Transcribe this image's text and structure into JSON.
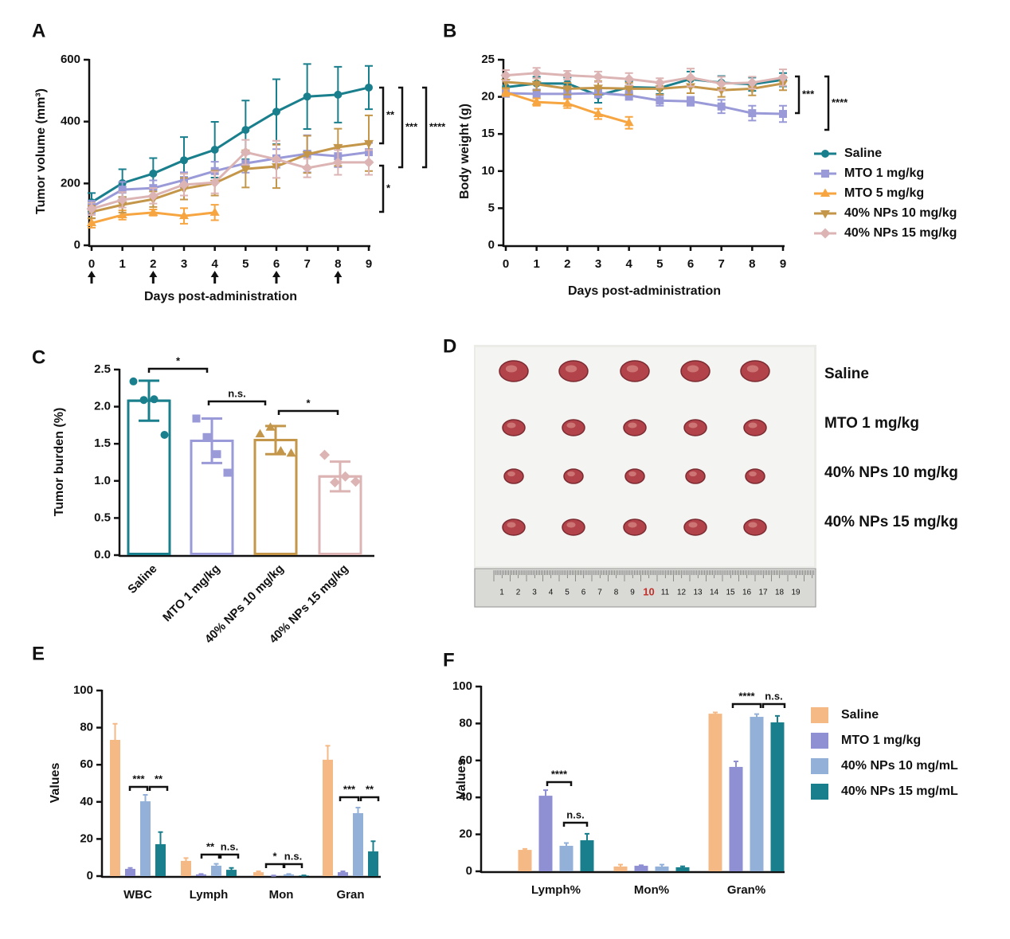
{
  "chart_data": [
    {
      "type": "line",
      "label": "A",
      "ylabel": "Tumor volume (mm³)",
      "xlabel": "Days post-administration",
      "x": [
        0,
        1,
        2,
        3,
        4,
        5,
        6,
        7,
        8,
        9
      ],
      "xlim": [
        0,
        9
      ],
      "xticks": [
        0,
        1,
        2,
        3,
        4,
        5,
        6,
        7,
        8,
        9
      ],
      "ylim": [
        0,
        600
      ],
      "yticks": [
        0,
        200,
        400,
        600
      ],
      "dosing_days": [
        0,
        2,
        4,
        6,
        8
      ],
      "series": [
        {
          "color": "#1a7f8c",
          "marker": "circle",
          "values": [
            139,
            201,
            232,
            275,
            309,
            373,
            432,
            481,
            487,
            510
          ],
          "errors": [
            30,
            45,
            50,
            75,
            90,
            95,
            105,
            105,
            90,
            70
          ]
        },
        {
          "color": "#9a9ad8",
          "marker": "square",
          "values": [
            124,
            180,
            185,
            211,
            240,
            265,
            281,
            296,
            288,
            301
          ],
          "errors": [
            20,
            25,
            25,
            25,
            30,
            30,
            30,
            60,
            35,
            30
          ]
        },
        {
          "color": "#f7a540",
          "marker": "triangle",
          "values": [
            72,
            98,
            106,
            95,
            106,
            null,
            null,
            null,
            null,
            null
          ],
          "errors": [
            15,
            15,
            10,
            25,
            25,
            null,
            null,
            null,
            null,
            null
          ]
        },
        {
          "color": "#c4964a",
          "marker": "triangle-down",
          "values": [
            108,
            131,
            149,
            183,
            201,
            247,
            255,
            294,
            317,
            330
          ],
          "errors": [
            20,
            25,
            25,
            35,
            40,
            60,
            70,
            60,
            60,
            90
          ]
        },
        {
          "color": "#dcb4b4",
          "marker": "diamond",
          "values": [
            118,
            147,
            160,
            196,
            203,
            301,
            278,
            250,
            268,
            268
          ],
          "errors": [
            20,
            25,
            25,
            35,
            35,
            40,
            60,
            30,
            40,
            40
          ]
        }
      ],
      "annotations": [
        "**",
        "***",
        "****",
        "*"
      ]
    },
    {
      "type": "line",
      "label": "B",
      "ylabel": "Body weight (g)",
      "xlabel": "Days post-administration",
      "x": [
        0,
        1,
        2,
        3,
        4,
        5,
        6,
        7,
        8,
        9
      ],
      "xlim": [
        0,
        9
      ],
      "xticks": [
        0,
        1,
        2,
        3,
        4,
        5,
        6,
        7,
        8,
        9
      ],
      "ylim": [
        0,
        25
      ],
      "yticks": [
        0,
        5,
        10,
        15,
        20,
        25
      ],
      "legend": "right",
      "series": [
        {
          "name": "Saline",
          "color": "#1a7f8c",
          "marker": "circle",
          "values": [
            21.3,
            21.8,
            21.8,
            20.2,
            21.3,
            21.2,
            22.4,
            21.9,
            21.7,
            22.3
          ],
          "errors": [
            1.0,
            0.9,
            0.8,
            1.0,
            0.8,
            0.8,
            1.0,
            0.9,
            0.9,
            0.9
          ]
        },
        {
          "name": "MTO 1 mg/kg",
          "color": "#9a9ad8",
          "marker": "square",
          "values": [
            20.5,
            20.4,
            20.4,
            20.5,
            20.2,
            19.5,
            19.4,
            18.7,
            17.8,
            17.7
          ],
          "errors": [
            0.5,
            0.6,
            0.5,
            0.6,
            0.6,
            0.7,
            0.6,
            0.9,
            1.0,
            1.1
          ]
        },
        {
          "name": "MTO 5 mg/kg",
          "color": "#f7a540",
          "marker": "triangle",
          "values": [
            20.6,
            19.3,
            19.1,
            17.7,
            16.5,
            null,
            null,
            null,
            null,
            null
          ],
          "errors": [
            0.5,
            0.5,
            0.6,
            0.7,
            0.8,
            null,
            null,
            null,
            null,
            null
          ]
        },
        {
          "name": "40% NPs 10 mg/kg",
          "color": "#c4964a",
          "marker": "triangle-down",
          "values": [
            22.0,
            21.7,
            21.1,
            21.2,
            21.1,
            21.1,
            21.4,
            20.9,
            21.1,
            21.8
          ],
          "errors": [
            0.8,
            0.8,
            0.8,
            0.9,
            0.8,
            0.8,
            0.9,
            0.9,
            0.9,
            0.9
          ]
        },
        {
          "name": "40% NPs 15 mg/kg",
          "color": "#dcb4b4",
          "marker": "diamond",
          "values": [
            22.9,
            23.2,
            22.9,
            22.7,
            22.4,
            21.9,
            22.6,
            21.8,
            21.9,
            22.6
          ],
          "errors": [
            0.7,
            0.7,
            0.6,
            0.7,
            0.8,
            0.6,
            1.2,
            0.9,
            0.8,
            1.1
          ]
        }
      ],
      "annotations": [
        "***",
        "****"
      ]
    },
    {
      "type": "bar",
      "label": "C",
      "ylabel": "Tumor burden (%)",
      "categories": [
        "Saline",
        "MTO 1 mg/kg",
        "40% NPs 10 mg/kg",
        "40% NPs 15 mg/kg"
      ],
      "values": [
        2.08,
        1.54,
        1.55,
        1.06
      ],
      "errors": [
        0.27,
        0.3,
        0.19,
        0.2
      ],
      "points": [
        [
          2.34,
          2.09,
          2.1,
          1.62
        ],
        [
          1.84,
          1.59,
          1.36,
          1.11
        ],
        [
          1.63,
          1.72,
          1.4,
          1.37
        ],
        [
          1.35,
          0.98,
          1.06,
          0.99
        ]
      ],
      "colors": [
        "#1a7f8c",
        "#9a9ad8",
        "#c4964a",
        "#dcb4b4"
      ],
      "markers": [
        "circle",
        "square",
        "triangle",
        "diamond"
      ],
      "ylim": [
        0,
        2.5
      ],
      "yticks": [
        {
          "value": 0,
          "label": "0.0"
        },
        {
          "value": 0.5,
          "label": "0.5"
        },
        {
          "value": 1,
          "label": "1.0"
        },
        {
          "value": 1.5,
          "label": "1.5"
        },
        {
          "value": 2,
          "label": "2.0"
        },
        {
          "value": 2.5,
          "label": "2.5"
        }
      ],
      "annotations": [
        "*",
        "n.s.",
        "*"
      ]
    },
    {
      "type": "bar",
      "label": "E",
      "ylabel": "Values",
      "categories": [
        "WBC",
        "Lymph",
        "Mon",
        "Gran"
      ],
      "ylim": [
        0,
        100
      ],
      "yticks": [
        0,
        20,
        40,
        60,
        80,
        100
      ],
      "series": [
        {
          "color": "#f5b985",
          "values": [
            73.4,
            8.2,
            2.1,
            62.7
          ],
          "errors": [
            8.7,
            1.5,
            0.5,
            7.5
          ]
        },
        {
          "color": "#8f8fd4",
          "values": [
            3.9,
            0.9,
            0.2,
            2.1
          ],
          "errors": [
            0.5,
            0.2,
            0.1,
            0.5
          ]
        },
        {
          "color": "#92b0d8",
          "values": [
            40.3,
            5.6,
            0.9,
            33.9
          ],
          "errors": [
            3.5,
            1,
            0.2,
            3
          ]
        },
        {
          "color": "#1a7f8c",
          "values": [
            17.2,
            3.4,
            0.3,
            13.3
          ],
          "errors": [
            6.5,
            1,
            0.1,
            5.5
          ]
        }
      ],
      "annotations": [
        "***",
        "**",
        "**",
        "n.s.",
        "*",
        "n.s.",
        "***",
        "**"
      ]
    },
    {
      "type": "bar",
      "label": "F",
      "ylabel": "Values",
      "categories": [
        "Lymph%",
        "Mon%",
        "Gran%"
      ],
      "ylim": [
        0,
        100
      ],
      "yticks": [
        0,
        20,
        40,
        60,
        80,
        100
      ],
      "legend": "right",
      "series": [
        {
          "name": "Saline",
          "color": "#f5b985",
          "values": [
            11.6,
            2.6,
            85.3
          ],
          "errors": [
            0.5,
            1,
            0.7
          ]
        },
        {
          "name": "MTO 1 mg/kg",
          "color": "#8f8fd4",
          "values": [
            40.9,
            3.0,
            56.5
          ],
          "errors": [
            3,
            0.3,
            3
          ]
        },
        {
          "name": "40% NPs 10 mg/mL",
          "color": "#92b0d8",
          "values": [
            13.8,
            2.6,
            83.6
          ],
          "errors": [
            1.5,
            1,
            1.5
          ]
        },
        {
          "name": "40% NPs 15 mg/mL",
          "color": "#1a7f8c",
          "values": [
            16.8,
            2.2,
            80.6
          ],
          "errors": [
            3.5,
            0.5,
            3.5
          ]
        }
      ],
      "annotations": [
        "****",
        "n.s.",
        "****",
        "n.s."
      ]
    }
  ],
  "photo": {
    "label": "D",
    "rows": [
      "Saline",
      "MTO 1 mg/kg",
      "40% NPs 10 mg/kg",
      "40% NPs 15 mg/kg"
    ],
    "ruler_labels": [
      "1",
      "2",
      "3",
      "4",
      "5",
      "6",
      "7",
      "8",
      "9",
      "10",
      "11",
      "12",
      "13",
      "14",
      "15",
      "16",
      "17",
      "18",
      "19"
    ]
  }
}
